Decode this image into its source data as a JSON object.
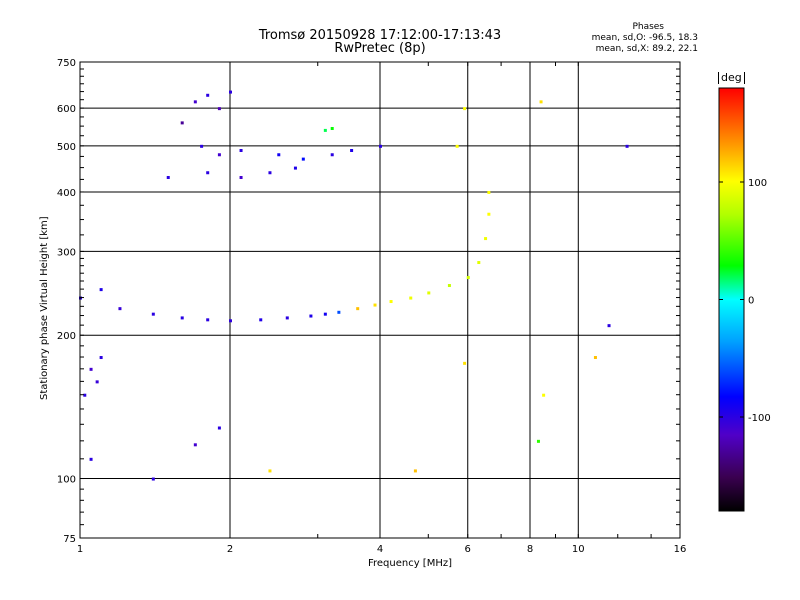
{
  "title_line1": "Tromsø 20150928 17:12:00-17:13:43",
  "title_line2": "RwPretec (8p)",
  "stats": {
    "heading": "Phases",
    "line_o": "mean, sd,O: -96.5, 18.3",
    "line_x": "mean, sd,X:  89.2, 22.1"
  },
  "colorbar": {
    "unit": "deg",
    "ticks": [
      "100",
      "0",
      "-100"
    ],
    "tick_values": [
      100,
      0,
      -100
    ],
    "range": [
      -180,
      180
    ]
  },
  "chart_data": {
    "type": "scatter",
    "xlabel": "Frequency [MHz]",
    "ylabel": "Stationary phase Virtual Height [km]",
    "x_scale": "log",
    "y_scale": "log",
    "xlim": [
      1,
      16
    ],
    "ylim": [
      75,
      750
    ],
    "x_ticks": [
      1,
      2,
      4,
      6,
      8,
      10,
      16
    ],
    "x_tick_labels": [
      "1",
      "2",
      "4",
      "6",
      "8",
      "10",
      "16"
    ],
    "y_ticks": [
      75,
      100,
      200,
      300,
      400,
      500,
      600,
      750
    ],
    "y_tick_labels": [
      "75",
      "100",
      "200",
      "300",
      "400",
      "500",
      "600",
      "750"
    ],
    "grid": true,
    "color_by": "phase (deg)",
    "series": [
      {
        "points": [
          [
            1.0,
            240,
            -100
          ],
          [
            1.1,
            250,
            -95
          ],
          [
            1.2,
            228,
            -105
          ],
          [
            1.4,
            222,
            -100
          ],
          [
            1.6,
            218,
            -98
          ],
          [
            1.8,
            216,
            -100
          ],
          [
            2.0,
            215,
            -102
          ],
          [
            2.3,
            216,
            -96
          ],
          [
            2.6,
            218,
            -100
          ],
          [
            2.9,
            220,
            -95
          ],
          [
            3.1,
            222,
            -90
          ],
          [
            3.3,
            224,
            -60
          ],
          [
            3.6,
            228,
            120
          ],
          [
            3.9,
            232,
            110
          ],
          [
            4.2,
            236,
            100
          ],
          [
            4.6,
            240,
            95
          ],
          [
            5.0,
            246,
            90
          ],
          [
            5.5,
            255,
            80
          ],
          [
            6.0,
            265,
            85
          ],
          [
            6.3,
            285,
            90
          ],
          [
            6.5,
            320,
            95
          ],
          [
            6.6,
            360,
            100
          ],
          [
            6.6,
            400,
            100
          ]
        ]
      },
      {
        "points": [
          [
            1.05,
            170,
            -110
          ],
          [
            1.08,
            160,
            -105
          ],
          [
            1.1,
            180,
            -100
          ],
          [
            1.02,
            150,
            -100
          ]
        ]
      },
      {
        "points": [
          [
            1.7,
            620,
            -110
          ],
          [
            1.8,
            640,
            -100
          ],
          [
            1.9,
            600,
            -120
          ],
          [
            2.0,
            650,
            -100
          ],
          [
            1.6,
            560,
            -130
          ],
          [
            1.75,
            500,
            -100
          ],
          [
            1.9,
            480,
            -110
          ],
          [
            2.1,
            490,
            -100
          ],
          [
            2.5,
            480,
            -90
          ],
          [
            2.8,
            470,
            -80
          ],
          [
            3.2,
            480,
            -100
          ],
          [
            3.5,
            490,
            -95
          ],
          [
            4.0,
            500,
            -100
          ],
          [
            5.7,
            500,
            100
          ],
          [
            5.9,
            600,
            100
          ]
        ]
      },
      {
        "points": [
          [
            1.5,
            430,
            -100
          ],
          [
            1.8,
            440,
            -100
          ],
          [
            2.1,
            430,
            -110
          ],
          [
            2.4,
            440,
            -100
          ],
          [
            2.7,
            450,
            -95
          ]
        ]
      },
      {
        "points": [
          [
            3.1,
            540,
            20
          ],
          [
            3.2,
            545,
            30
          ]
        ]
      },
      {
        "points": [
          [
            8.4,
            620,
            110
          ],
          [
            8.5,
            150,
            100
          ],
          [
            8.3,
            120,
            40
          ],
          [
            10.8,
            180,
            120
          ],
          [
            11.5,
            210,
            -100
          ],
          [
            12.5,
            500,
            -100
          ]
        ]
      },
      {
        "points": [
          [
            1.05,
            110,
            -100
          ],
          [
            1.4,
            100,
            -100
          ],
          [
            1.7,
            118,
            -110
          ],
          [
            2.4,
            104,
            110
          ],
          [
            4.7,
            104,
            120
          ],
          [
            5.9,
            175,
            110
          ],
          [
            1.9,
            128,
            -100
          ]
        ]
      }
    ]
  }
}
